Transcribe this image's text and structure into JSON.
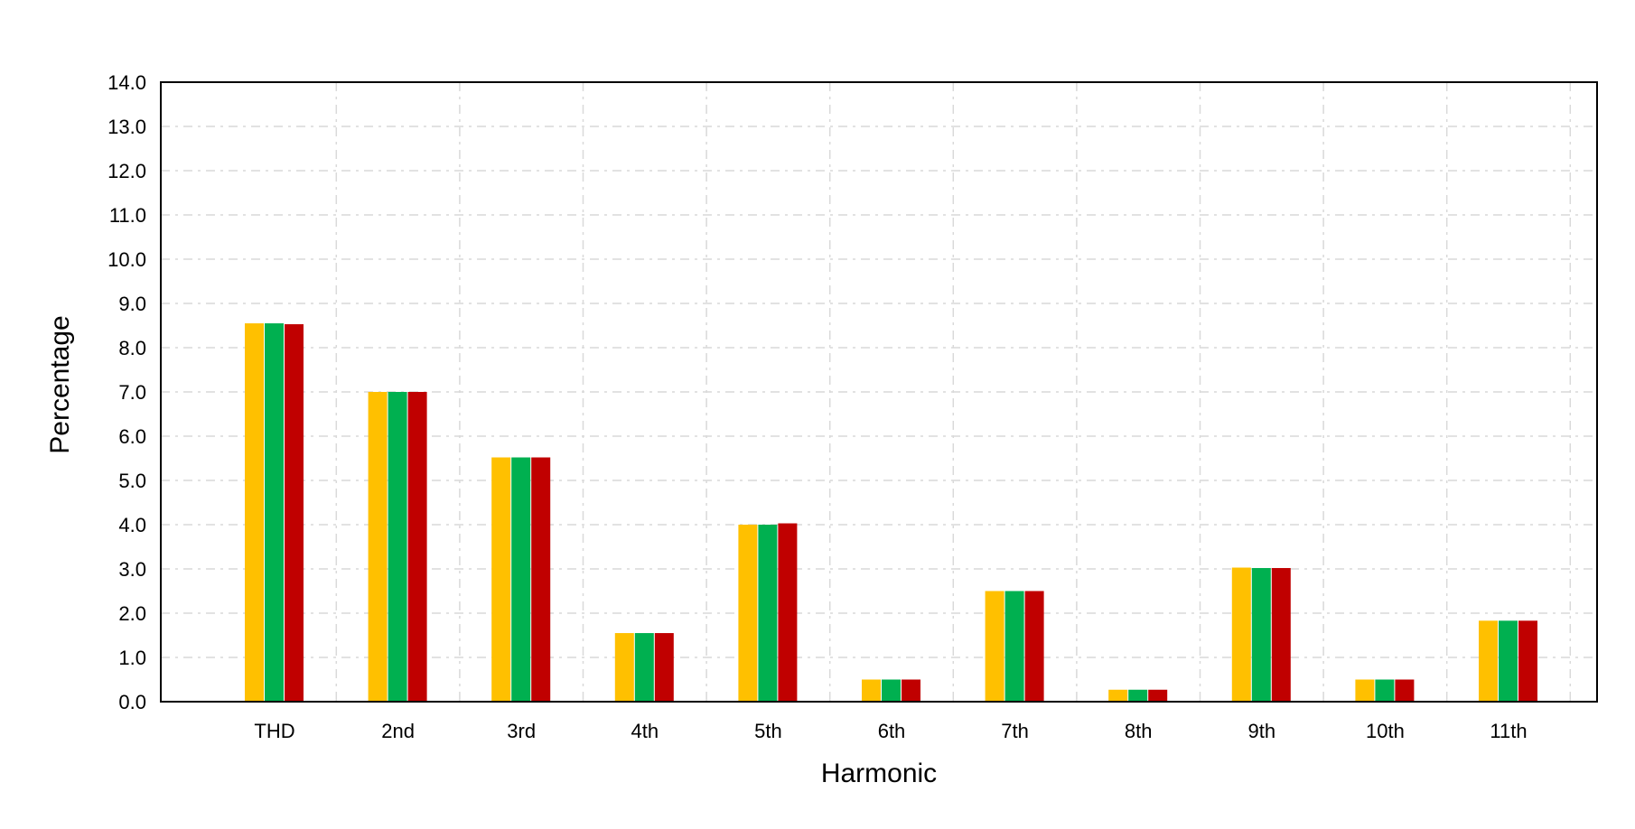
{
  "chart_data": {
    "type": "bar",
    "title": "",
    "xlabel": "Harmonic",
    "ylabel": "Percentage",
    "ylim": [
      0,
      14
    ],
    "ytick_step": 1,
    "yticks": [
      "0.0",
      "1.0",
      "2.0",
      "3.0",
      "4.0",
      "5.0",
      "6.0",
      "7.0",
      "8.0",
      "9.0",
      "10.0",
      "11.0",
      "12.0",
      "13.0",
      "14.0"
    ],
    "grid": true,
    "grid_style": "dashed",
    "legend": false,
    "categories": [
      "THD",
      "2nd",
      "3rd",
      "4th",
      "5th",
      "6th",
      "7th",
      "8th",
      "9th",
      "10th",
      "11th"
    ],
    "series": [
      {
        "color": "#FFC000",
        "values": [
          8.55,
          7.0,
          5.52,
          1.55,
          4.0,
          0.5,
          2.5,
          0.27,
          3.03,
          0.5,
          1.83
        ]
      },
      {
        "color": "#00B050",
        "values": [
          8.55,
          7.0,
          5.52,
          1.55,
          4.0,
          0.5,
          2.5,
          0.27,
          3.02,
          0.5,
          1.83
        ]
      },
      {
        "color": "#C00000",
        "values": [
          8.53,
          7.0,
          5.52,
          1.55,
          4.03,
          0.5,
          2.5,
          0.27,
          3.02,
          0.5,
          1.83
        ]
      }
    ]
  }
}
